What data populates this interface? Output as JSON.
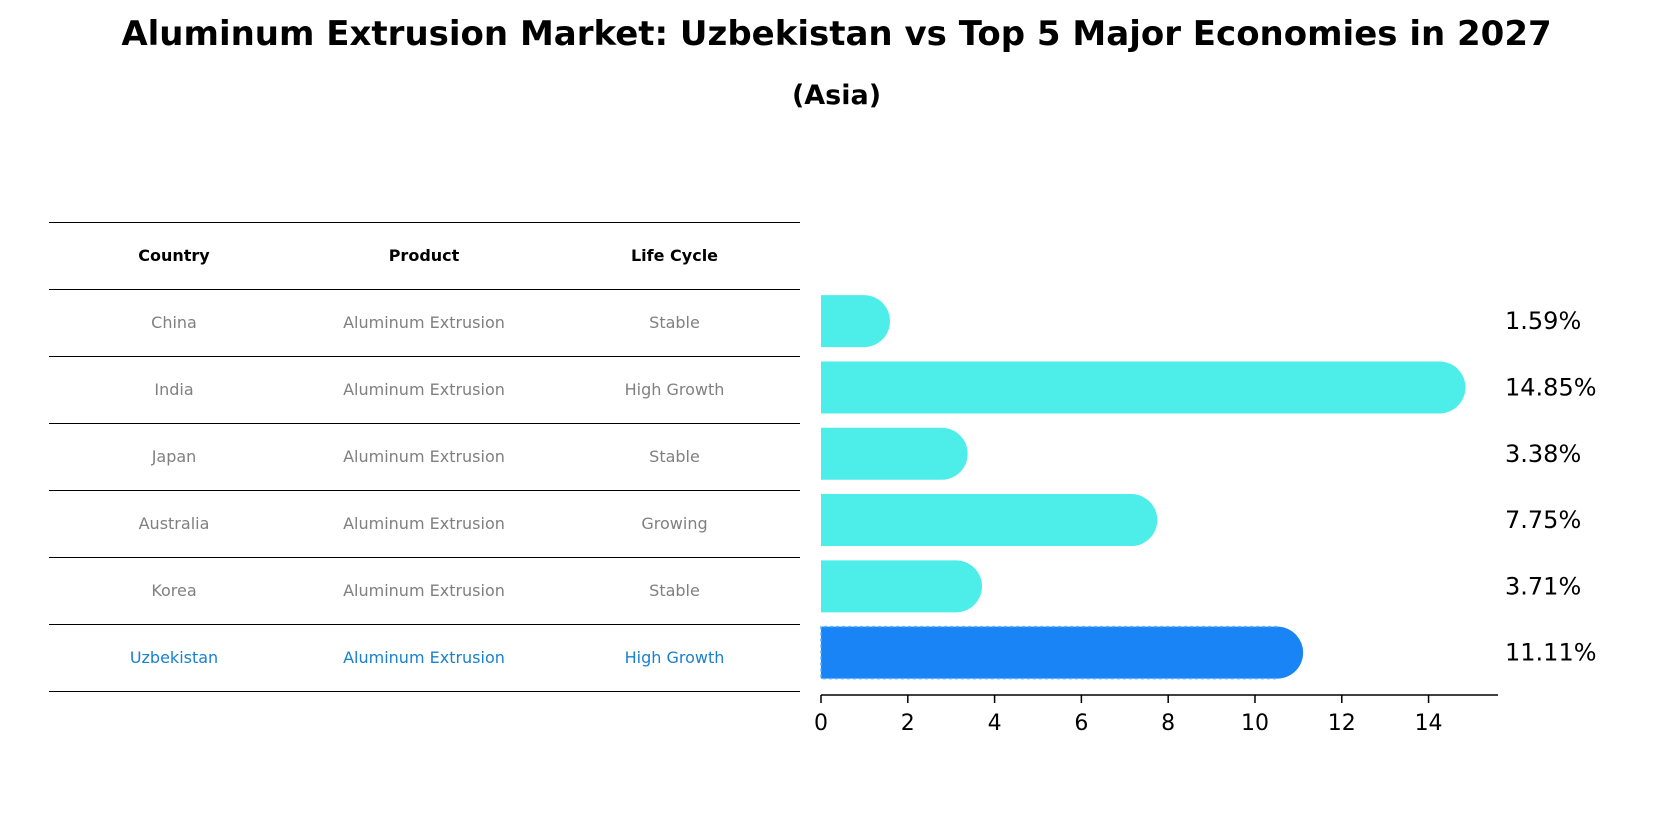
{
  "chart_data": {
    "type": "bar",
    "orientation": "horizontal",
    "title": "Aluminum Extrusion Market: Uzbekistan vs Top 5 Major Economies in 2027",
    "subtitle": "(Asia)",
    "table": {
      "headers": [
        "Country",
        "Product",
        "Life Cycle"
      ],
      "rows": [
        [
          "China",
          "Aluminum Extrusion",
          "Stable"
        ],
        [
          "India",
          "Aluminum Extrusion",
          "High Growth"
        ],
        [
          "Japan",
          "Aluminum Extrusion",
          "Stable"
        ],
        [
          "Australia",
          "Aluminum Extrusion",
          "Growing"
        ],
        [
          "Korea",
          "Aluminum Extrusion",
          "Stable"
        ],
        [
          "Uzbekistan",
          "Aluminum Extrusion",
          "High Growth"
        ]
      ]
    },
    "categories": [
      "China",
      "India",
      "Japan",
      "Australia",
      "Korea",
      "Uzbekistan"
    ],
    "values": [
      1.59,
      14.85,
      3.38,
      7.75,
      3.71,
      11.11
    ],
    "value_labels": [
      "1.59%",
      "14.85%",
      "3.38%",
      "7.75%",
      "3.71%",
      "11.11%"
    ],
    "highlight_index": 5,
    "colors": {
      "default": "#4deeea",
      "highlight": "#1984f5",
      "highlight_text": "#1a80d0"
    },
    "xticks": [
      0,
      2,
      4,
      6,
      8,
      10,
      12,
      14
    ],
    "xlim": [
      0,
      15.6
    ],
    "xlabel": "",
    "ylabel": "",
    "grid": false
  }
}
